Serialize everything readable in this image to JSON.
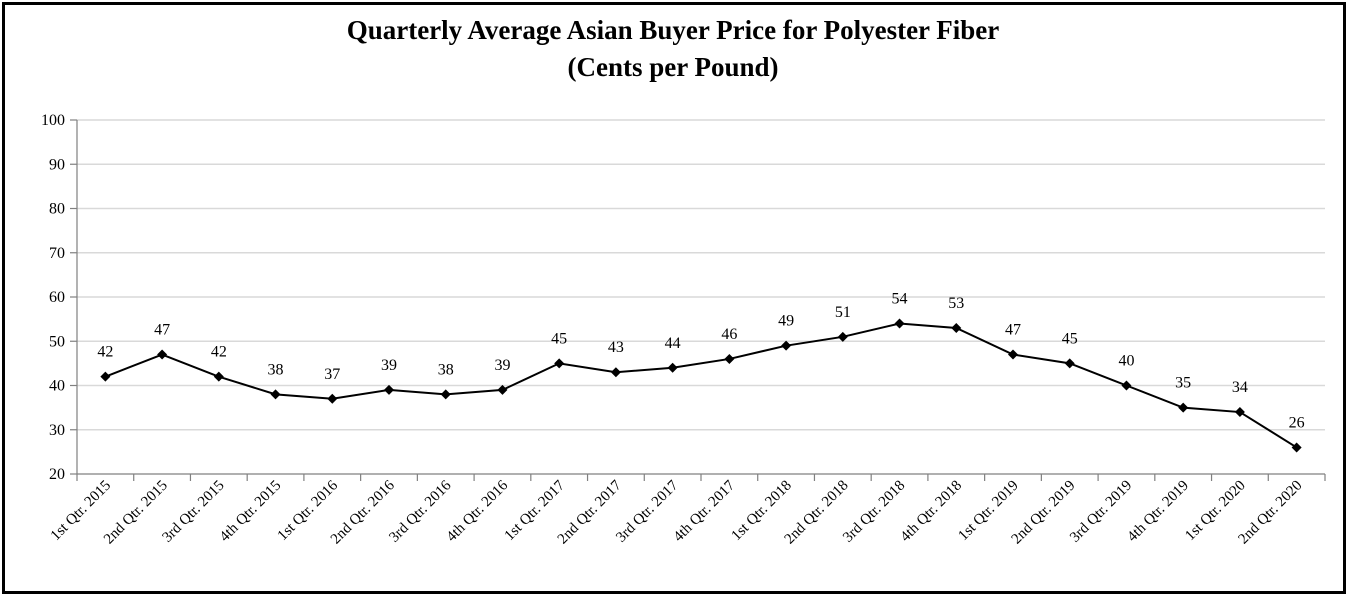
{
  "chart_data": {
    "type": "line",
    "title": "Quarterly Average Asian Buyer Price for Polyester Fiber",
    "subtitle": "(Cents per Pound)",
    "xlabel": "",
    "ylabel": "",
    "ylim": [
      20,
      100
    ],
    "yticks": [
      20,
      30,
      40,
      50,
      60,
      70,
      80,
      90,
      100
    ],
    "grid": true,
    "legend": "none",
    "categories": [
      "1st Qtr. 2015",
      "2nd Qtr. 2015",
      "3rd Qtr. 2015",
      "4th Qtr. 2015",
      "1st Qtr. 2016",
      "2nd Qtr. 2016",
      "3rd Qtr. 2016",
      "4th Qtr. 2016",
      "1st Qtr. 2017",
      "2nd Qtr. 2017",
      "3rd Qtr. 2017",
      "4th Qtr. 2017",
      "1st Qtr. 2018",
      "2nd Qtr. 2018",
      "3rd Qtr. 2018",
      "4th Qtr. 2018",
      "1st Qtr. 2019",
      "2nd Qtr. 2019",
      "3rd Qtr. 2019",
      "4th Qtr. 2019",
      "1st Qtr. 2020",
      "2nd Qtr. 2020"
    ],
    "series": [
      {
        "values": [
          42,
          47,
          42,
          38,
          37,
          39,
          38,
          39,
          45,
          43,
          44,
          46,
          49,
          51,
          54,
          53,
          47,
          45,
          40,
          35,
          34,
          26
        ],
        "color": "#000000",
        "marker": "diamond"
      }
    ]
  }
}
